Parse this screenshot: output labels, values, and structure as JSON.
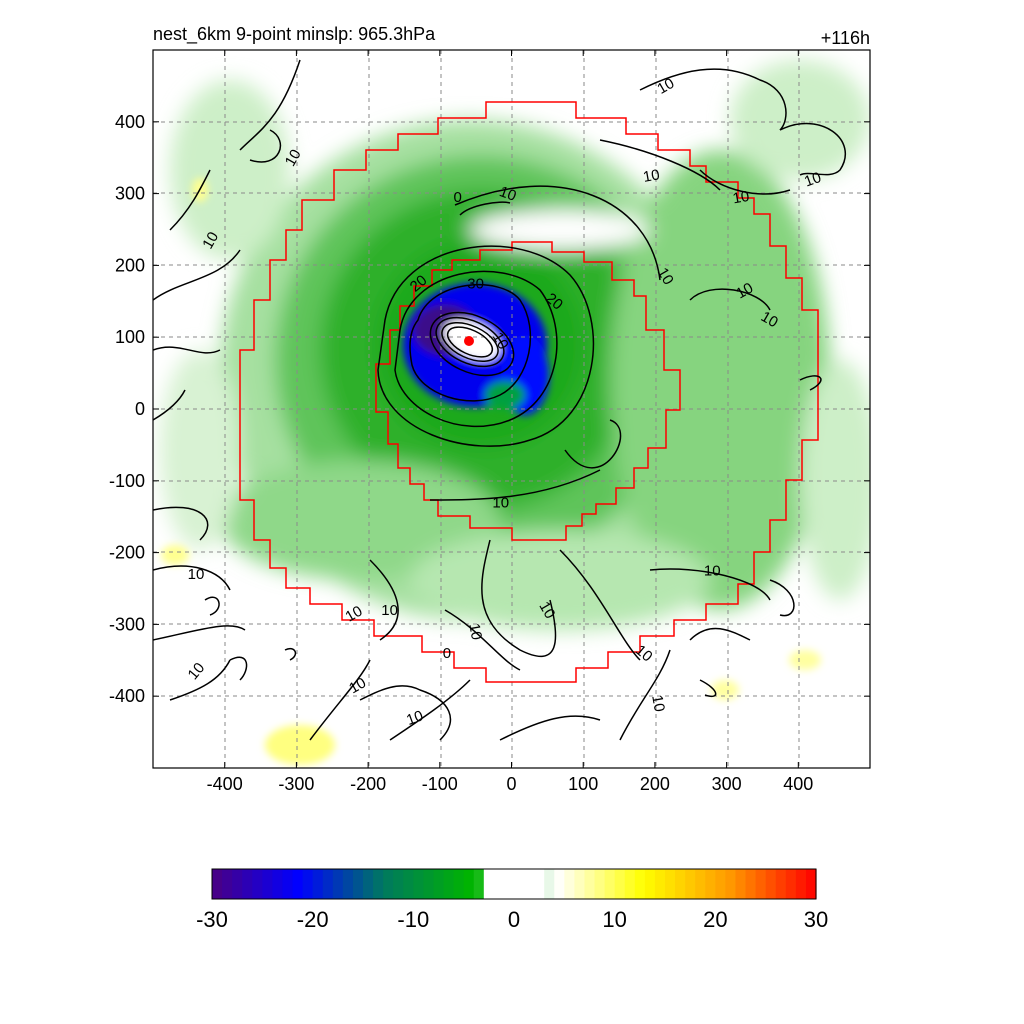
{
  "chart_data": {
    "type": "heatmap",
    "title": "nest_6km  9-point minslp: 965.3hPa",
    "title_right": "+116h",
    "xlim": [
      -500,
      500
    ],
    "ylim": [
      -500,
      500
    ],
    "x_ticks": [
      -400,
      -300,
      -200,
      -100,
      0,
      100,
      200,
      300,
      400
    ],
    "y_ticks": [
      400,
      300,
      200,
      100,
      0,
      -100,
      -200,
      -300,
      -400
    ],
    "grid": true,
    "center": {
      "x": -60,
      "y": 95,
      "color": "#ff0000"
    },
    "colorbar": {
      "range": [
        -30,
        30
      ],
      "ticks": [
        -30,
        -20,
        -10,
        0,
        10,
        20,
        30
      ],
      "colors": [
        "#4b0082",
        "#0000ff",
        "#007a5e",
        "#00b400",
        "#ffffff",
        "#ffff00",
        "#ff9900",
        "#ff0000"
      ]
    },
    "contour_labels": [
      {
        "text": "10",
        "x": -420,
        "y": 235,
        "rot": -60
      },
      {
        "text": "10",
        "x": -305,
        "y": 350,
        "rot": -60
      },
      {
        "text": "0",
        "x": -75,
        "y": 295,
        "rot": 0
      },
      {
        "text": "10",
        "x": -5,
        "y": 300,
        "rot": 20
      },
      {
        "text": "10",
        "x": 195,
        "y": 325,
        "rot": -10
      },
      {
        "text": "10",
        "x": 320,
        "y": 295,
        "rot": -10
      },
      {
        "text": "10",
        "x": 215,
        "y": 185,
        "rot": 60
      },
      {
        "text": "10",
        "x": 325,
        "y": 165,
        "rot": -30
      },
      {
        "text": "10",
        "x": 360,
        "y": 125,
        "rot": 30
      },
      {
        "text": "10",
        "x": 420,
        "y": 320,
        "rot": -20
      },
      {
        "text": "10",
        "x": 215,
        "y": 450,
        "rot": -30
      },
      {
        "text": "30",
        "x": -50,
        "y": 175,
        "rot": 0
      },
      {
        "text": "20",
        "x": -130,
        "y": 175,
        "rot": -40
      },
      {
        "text": "20",
        "x": 60,
        "y": 150,
        "rot": 40
      },
      {
        "text": "10",
        "x": -15,
        "y": 95,
        "rot": 60
      },
      {
        "text": "10",
        "x": -15,
        "y": -130,
        "rot": 0
      },
      {
        "text": "10",
        "x": 280,
        "y": -225,
        "rot": 0
      },
      {
        "text": "10",
        "x": -440,
        "y": -230,
        "rot": 0
      },
      {
        "text": "10",
        "x": -220,
        "y": -285,
        "rot": -30
      },
      {
        "text": "10",
        "x": -170,
        "y": -280,
        "rot": 0
      },
      {
        "text": "10",
        "x": -50,
        "y": -310,
        "rot": 80
      },
      {
        "text": "10",
        "x": 50,
        "y": -280,
        "rot": 60
      },
      {
        "text": "0",
        "x": -90,
        "y": -340,
        "rot": 0
      },
      {
        "text": "10",
        "x": 185,
        "y": -340,
        "rot": 40
      },
      {
        "text": "10",
        "x": -440,
        "y": -365,
        "rot": -50
      },
      {
        "text": "10",
        "x": -215,
        "y": -385,
        "rot": -30
      },
      {
        "text": "10",
        "x": -135,
        "y": -430,
        "rot": -20
      },
      {
        "text": "10",
        "x": 205,
        "y": -410,
        "rot": 80
      }
    ]
  }
}
